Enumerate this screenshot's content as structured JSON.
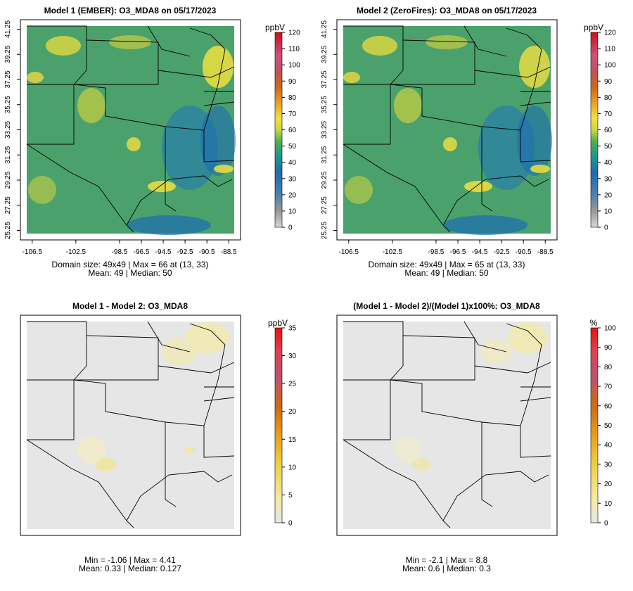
{
  "chart_data": [
    {
      "type": "heatmap",
      "title": "Model 1 (EMBER): O3_MDA8 on 05/17/2023",
      "x_ticks": [
        "-106.5",
        "-102.5",
        "-98.5",
        "-96.5",
        "-94.5",
        "-92.5",
        "-90.5",
        "-88.5"
      ],
      "y_ticks": [
        "25.25",
        "27.25",
        "29.25",
        "31.25",
        "33.25",
        "35.25",
        "37.25",
        "39.25",
        "41.25"
      ],
      "xlim": [
        -107,
        -88
      ],
      "ylim": [
        25,
        41.5
      ],
      "legend": {
        "unit": "ppbV",
        "ticks": [
          "0",
          "10",
          "20",
          "30",
          "40",
          "50",
          "60",
          "70",
          "80",
          "90",
          "100",
          "110",
          "120"
        ],
        "range": [
          0,
          120
        ]
      },
      "stats_line1": "Domain size: 49x49 | Max = 66 at (13, 33)",
      "stats_line2": "Mean: 49 |  Median: 50",
      "palette": "viridis-like"
    },
    {
      "type": "heatmap",
      "title": "Model 2 (ZeroFires): O3_MDA8 on 05/17/2023",
      "x_ticks": [
        "-106.5",
        "-102.5",
        "-98.5",
        "-96.5",
        "-94.5",
        "-92.5",
        "-90.5",
        "-88.5"
      ],
      "y_ticks": [
        "25.25",
        "27.25",
        "29.25",
        "31.25",
        "33.25",
        "35.25",
        "37.25",
        "39.25",
        "41.25"
      ],
      "xlim": [
        -107,
        -88
      ],
      "ylim": [
        25,
        41.5
      ],
      "legend": {
        "unit": "ppbV",
        "ticks": [
          "0",
          "10",
          "20",
          "30",
          "40",
          "50",
          "60",
          "70",
          "80",
          "90",
          "100",
          "110",
          "120"
        ],
        "range": [
          0,
          120
        ]
      },
      "stats_line1": "Domain size: 49x49 | Max = 65 at (13, 33)",
      "stats_line2": "Mean: 49 |  Median: 50",
      "palette": "viridis-like"
    },
    {
      "type": "heatmap",
      "title": "Model 1 - Model 2: O3_MDA8",
      "legend": {
        "unit": "ppbV",
        "ticks": [
          "0",
          "5",
          "10",
          "15",
          "20",
          "25",
          "30",
          "35"
        ],
        "range": [
          0,
          35
        ]
      },
      "stats_line1": "Min = -1.06 | Max = 4.41",
      "stats_line2": "Mean: 0.33 |  Median: 0.127",
      "palette": "grey-yellow-red"
    },
    {
      "type": "heatmap",
      "title": "(Model 1 - Model 2)/(Model 1)x100%: O3_MDA8",
      "legend": {
        "unit": "%",
        "ticks": [
          "0",
          "10",
          "20",
          "30",
          "40",
          "50",
          "60",
          "70",
          "80",
          "90",
          "100"
        ],
        "range": [
          0,
          100
        ]
      },
      "stats_line1": "Min = -2.1 | Max = 8.8",
      "stats_line2": "Mean: 0.6 |  Median: 0.3",
      "palette": "grey-yellow-red"
    }
  ]
}
